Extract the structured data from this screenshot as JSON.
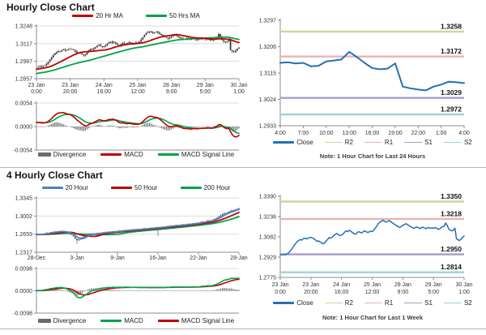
{
  "page": {
    "background": "#FFFFFF"
  },
  "chart_data": [
    {
      "id": "hourly_price",
      "type": "candlestick",
      "title": "Hourly Close Chart",
      "y_ticks": [
        "1.3248",
        "1.3117",
        "1.2987",
        "1.2857"
      ],
      "y_max": 1.3248,
      "y_min": 1.2857,
      "x_ticks": [
        {
          "l1": "23 Jan",
          "l2": "0:00"
        },
        {
          "l1": "23 Jan",
          "l2": "20:00"
        },
        {
          "l1": "24 Jan",
          "l2": "16:00"
        },
        {
          "l1": "25 Jan",
          "l2": "12:00"
        },
        {
          "l1": "28 Jan",
          "l2": "9:00"
        },
        {
          "l1": "29 Jan",
          "l2": "5:00"
        },
        {
          "l1": "30 Jan",
          "l2": "1:00"
        }
      ],
      "close": [
        1.2948,
        1.2946,
        1.295,
        1.2945,
        1.2952,
        1.2956,
        1.2968,
        1.2982,
        1.2998,
        1.3015,
        1.3032,
        1.3046,
        1.3055,
        1.3062,
        1.3058,
        1.3068,
        1.3073,
        1.3067,
        1.3071,
        1.3076,
        1.3079,
        1.3074,
        1.3068,
        1.3058,
        1.3048,
        1.3052,
        1.3044,
        1.3036,
        1.303,
        1.3038,
        1.3052,
        1.3064,
        1.3078,
        1.3072,
        1.3082,
        1.3092,
        1.3102,
        1.3108,
        1.3098,
        1.3092,
        1.3096,
        1.3104,
        1.3118,
        1.3128,
        1.3122,
        1.3132,
        1.3126,
        1.3116,
        1.3108,
        1.3102,
        1.3112,
        1.3122,
        1.3118,
        1.3112,
        1.312,
        1.3128,
        1.3122,
        1.3116,
        1.312,
        1.3126,
        1.3122,
        1.3132,
        1.3148,
        1.3166,
        1.3182,
        1.3194,
        1.3202,
        1.3208,
        1.3202,
        1.3194,
        1.32,
        1.3206,
        1.3198,
        1.319,
        1.3182,
        1.3174,
        1.3166,
        1.316,
        1.3154,
        1.3162,
        1.317,
        1.3176,
        1.3182,
        1.3176,
        1.3168,
        1.316,
        1.3154,
        1.3148,
        1.3152,
        1.3158,
        1.3152,
        1.3146,
        1.315,
        1.3156,
        1.315,
        1.3144,
        1.315,
        1.3152,
        1.3148,
        1.315,
        1.3148,
        1.3152,
        1.3148,
        1.314,
        1.3142,
        1.3154,
        1.316,
        1.3164,
        1.3188,
        1.3168,
        1.3142,
        1.3132,
        1.3128,
        1.3134,
        1.3148,
        1.3068,
        1.306,
        1.3055,
        1.3065,
        1.308,
        1.3088
      ],
      "pre_close": {
        "start": 1.284,
        "end": 1.2946,
        "count": 50
      },
      "jitter": 0.0012,
      "candle_color": "#333333",
      "ma": [
        {
          "name": "50 Hrs MA",
          "window": 50,
          "color": "#00A34A"
        },
        {
          "name": "20 Hr MA",
          "window": 20,
          "color": "#C00000"
        }
      ],
      "legend": [
        {
          "label": "20 Hr MA",
          "color": "#C00000",
          "type": "thick"
        },
        {
          "label": "50 Hrs MA",
          "color": "#00A34A",
          "type": "thick"
        }
      ],
      "macd": {
        "y_ticks": [
          "0.0054",
          "0.0000",
          "-0.0054"
        ],
        "y_max": 0.0054,
        "y_min": -0.0054,
        "fast": 8,
        "slow": 17,
        "signal": 9,
        "macd_color": "#C00000",
        "signal_color": "#00A34A",
        "bar_color": "#6b6b6b",
        "legend": [
          {
            "label": "Divergence",
            "color": "#6b6b6b",
            "type": "bar"
          },
          {
            "label": "MACD",
            "color": "#C00000",
            "type": "thick"
          },
          {
            "label": "MACD Signal Line",
            "color": "#00A34A",
            "type": "thick"
          }
        ]
      }
    },
    {
      "id": "pivot_last_24_hours",
      "type": "line",
      "y_ticks": [
        "1.3297",
        "1.3206",
        "1.3115",
        "1.3024",
        "1.2933"
      ],
      "y_max": 1.3297,
      "y_min": 1.2933,
      "x_ticks": [
        "4:00",
        "7:00",
        "10:00",
        "13:00",
        "16:00",
        "19:00",
        "22:00",
        "1:00",
        "4:00"
      ],
      "close": [
        1.315,
        1.3152,
        1.3148,
        1.315,
        1.3138,
        1.314,
        1.3155,
        1.3158,
        1.3162,
        1.3188,
        1.317,
        1.315,
        1.3132,
        1.3128,
        1.313,
        1.3148,
        1.3068,
        1.3062,
        1.3058,
        1.3055,
        1.3068,
        1.3075,
        1.3085,
        1.3083,
        1.308
      ],
      "close_color": "#2271B3",
      "line_width": 2,
      "pivots": [
        {
          "name": "R2",
          "label": "1.3258",
          "value": 1.3258,
          "color": "#C9D79F"
        },
        {
          "name": "R1",
          "label": "1.3172",
          "value": 1.3172,
          "color": "#EBB4B0"
        },
        {
          "name": "S1",
          "label": "1.3029",
          "value": 1.3029,
          "color": "#A79CC8"
        },
        {
          "name": "S2",
          "label": "1.2972",
          "value": 1.2972,
          "color": "#9FCFDD"
        }
      ],
      "legend": [
        {
          "label": "Close",
          "color": "#2271B3",
          "type": "thick"
        },
        {
          "label": "R2",
          "color": "#C9D79F",
          "type": "line"
        },
        {
          "label": "R1",
          "color": "#EBB4B0",
          "type": "line"
        },
        {
          "label": "S1",
          "color": "#A79CC8",
          "type": "line"
        },
        {
          "label": "S2",
          "color": "#9FCFDD",
          "type": "line"
        }
      ],
      "note": "Note: 1 Hour Chart for Last 24 Hours"
    },
    {
      "id": "four_hourly_price",
      "type": "candlestick",
      "title": "4 Hourly Close Chart",
      "y_ticks": [
        "1.3345",
        "1.3002",
        "1.2659",
        "1.2317"
      ],
      "y_max": 1.3345,
      "y_min": 1.2317,
      "x_ticks": [
        {
          "l1": "28-Dec"
        },
        {
          "l1": "3-Jan"
        },
        {
          "l1": "9-Jan"
        },
        {
          "l1": "16-Jan"
        },
        {
          "l1": "22-Jan"
        },
        {
          "l1": "28-Jan"
        }
      ],
      "close": [
        1.2655,
        1.266,
        1.2652,
        1.2658,
        1.267,
        1.2682,
        1.2676,
        1.2688,
        1.27,
        1.2692,
        1.2706,
        1.2712,
        1.2704,
        1.2716,
        1.271,
        1.27,
        1.2692,
        1.268,
        1.2664,
        1.2648,
        1.262,
        1.2575,
        1.2545,
        1.256,
        1.2585,
        1.2606,
        1.2622,
        1.2638,
        1.2652,
        1.266,
        1.2668,
        1.266,
        1.2672,
        1.268,
        1.2674,
        1.2686,
        1.2694,
        1.2688,
        1.2696,
        1.2704,
        1.2698,
        1.2706,
        1.2714,
        1.2708,
        1.2716,
        1.2724,
        1.2718,
        1.2728,
        1.2736,
        1.273,
        1.274,
        1.2734,
        1.2742,
        1.275,
        1.2744,
        1.2754,
        1.2748,
        1.2758,
        1.2766,
        1.276,
        1.277,
        1.2764,
        1.2774,
        1.2782,
        1.2776,
        1.2786,
        1.278,
        1.279,
        1.2798,
        1.2792,
        1.2802,
        1.2812,
        1.2806,
        1.2816,
        1.2824,
        1.2818,
        1.2828,
        1.2822,
        1.2832,
        1.284,
        1.2834,
        1.2844,
        1.2852,
        1.2846,
        1.2856,
        1.2864,
        1.2858,
        1.2868,
        1.2876,
        1.2886,
        1.2896,
        1.289,
        1.2902,
        1.2916,
        1.2908,
        1.292,
        1.2936,
        1.295,
        1.2972,
        1.2994,
        1.3016,
        1.304,
        1.306,
        1.3052,
        1.3074,
        1.3096,
        1.3114,
        1.3106,
        1.3122,
        1.3138,
        1.315
      ],
      "pre_close": {
        "start": 1.265,
        "end": 1.2652,
        "count": 26
      },
      "jitter": 0.0018,
      "candle_color": "#44546A",
      "long_lower_wicks": [
        {
          "i": 22,
          "d": 0.0065
        },
        {
          "i": 66,
          "d": 0.015
        }
      ],
      "ma": [
        {
          "name": "200 Hour",
          "window": 25,
          "color": "#00A34A"
        },
        {
          "name": "50 Hour",
          "window": 13,
          "color": "#C00000"
        },
        {
          "name": "20 Hour",
          "window": 5,
          "color": "#4F81BD"
        }
      ],
      "legend": [
        {
          "label": "20 Hour",
          "color": "#4F81BD",
          "type": "thick"
        },
        {
          "label": "50 Hour",
          "color": "#C00000",
          "type": "thick"
        },
        {
          "label": "200 Hour",
          "color": "#00A34A",
          "type": "thick"
        }
      ],
      "macd": {
        "y_ticks": [
          "0.0098",
          "0.0000",
          "-0.0098"
        ],
        "y_max": 0.0098,
        "y_min": -0.0098,
        "fast": 8,
        "slow": 17,
        "signal": 9,
        "macd_color": "#00A34A",
        "signal_color": "#C00000",
        "bar_color": "#6b6b6b",
        "legend": [
          {
            "label": "Divergence",
            "color": "#6b6b6b",
            "type": "bar"
          },
          {
            "label": "MACD",
            "color": "#00A34A",
            "type": "thick"
          },
          {
            "label": "MACD Signal Line",
            "color": "#C00000",
            "type": "thick"
          }
        ]
      }
    },
    {
      "id": "pivot_last_1_week",
      "type": "line",
      "y_ticks": [
        "1.3390",
        "1.3236",
        "1.3082",
        "1.2929",
        "1.2775"
      ],
      "y_max": 1.339,
      "y_min": 1.2775,
      "x_ticks": [
        {
          "l1": "23 Jan",
          "l2": "0:00"
        },
        {
          "l1": "23 Jan",
          "l2": "20:00"
        },
        {
          "l1": "24 Jan",
          "l2": "16:00"
        },
        {
          "l1": "25 Jan",
          "l2": "12:00"
        },
        {
          "l1": "28 Jan",
          "l2": "9:00"
        },
        {
          "l1": "29 Jan",
          "l2": "5:00"
        },
        {
          "l1": "30 Jan",
          "l2": "1:00"
        }
      ],
      "close": [
        1.2948,
        1.2946,
        1.295,
        1.2945,
        1.2952,
        1.2956,
        1.2968,
        1.2982,
        1.2998,
        1.3015,
        1.3032,
        1.3046,
        1.3055,
        1.3062,
        1.3058,
        1.3068,
        1.3073,
        1.3067,
        1.3071,
        1.3076,
        1.3079,
        1.3074,
        1.3068,
        1.3058,
        1.3048,
        1.3052,
        1.3044,
        1.3036,
        1.303,
        1.3038,
        1.3052,
        1.3064,
        1.3078,
        1.3072,
        1.3082,
        1.3092,
        1.3102,
        1.3108,
        1.3098,
        1.3092,
        1.3096,
        1.3104,
        1.3118,
        1.3128,
        1.3122,
        1.3132,
        1.3126,
        1.3116,
        1.3108,
        1.3102,
        1.3112,
        1.3122,
        1.3118,
        1.3112,
        1.312,
        1.3128,
        1.3122,
        1.3116,
        1.312,
        1.3126,
        1.3122,
        1.3132,
        1.3148,
        1.3166,
        1.3182,
        1.3194,
        1.3202,
        1.3208,
        1.3202,
        1.3194,
        1.32,
        1.3206,
        1.3198,
        1.319,
        1.3182,
        1.3174,
        1.3166,
        1.316,
        1.3154,
        1.3162,
        1.317,
        1.3176,
        1.3182,
        1.3176,
        1.3168,
        1.316,
        1.3154,
        1.3148,
        1.3152,
        1.3158,
        1.3152,
        1.3146,
        1.315,
        1.3156,
        1.315,
        1.3144,
        1.315,
        1.3152,
        1.3148,
        1.315,
        1.3148,
        1.3152,
        1.3148,
        1.314,
        1.3142,
        1.3154,
        1.316,
        1.3164,
        1.3188,
        1.3168,
        1.3142,
        1.3132,
        1.3128,
        1.3134,
        1.3148,
        1.3068,
        1.306,
        1.3055,
        1.3065,
        1.308,
        1.3088
      ],
      "close_color": "#2271B3",
      "line_width": 1.5,
      "pivots": [
        {
          "name": "R2",
          "label": "1.3350",
          "value": 1.335,
          "color": "#C9D79F"
        },
        {
          "name": "R1",
          "label": "1.3218",
          "value": 1.3218,
          "color": "#EBB4B0"
        },
        {
          "name": "S1",
          "label": "1.2950",
          "value": 1.295,
          "color": "#A79CC8"
        },
        {
          "name": "S2",
          "label": "1.2814",
          "value": 1.2814,
          "color": "#9FCFDD"
        }
      ],
      "legend": [
        {
          "label": "Close",
          "color": "#2271B3",
          "type": "thick"
        },
        {
          "label": "R2",
          "color": "#C9D79F",
          "type": "line"
        },
        {
          "label": "R1",
          "color": "#EBB4B0",
          "type": "line"
        },
        {
          "label": "S1",
          "color": "#A79CC8",
          "type": "line"
        },
        {
          "label": "S2",
          "color": "#9FCFDD",
          "type": "line"
        }
      ],
      "note": "Note: 1 Hour Chart for Last 1 Week"
    }
  ]
}
